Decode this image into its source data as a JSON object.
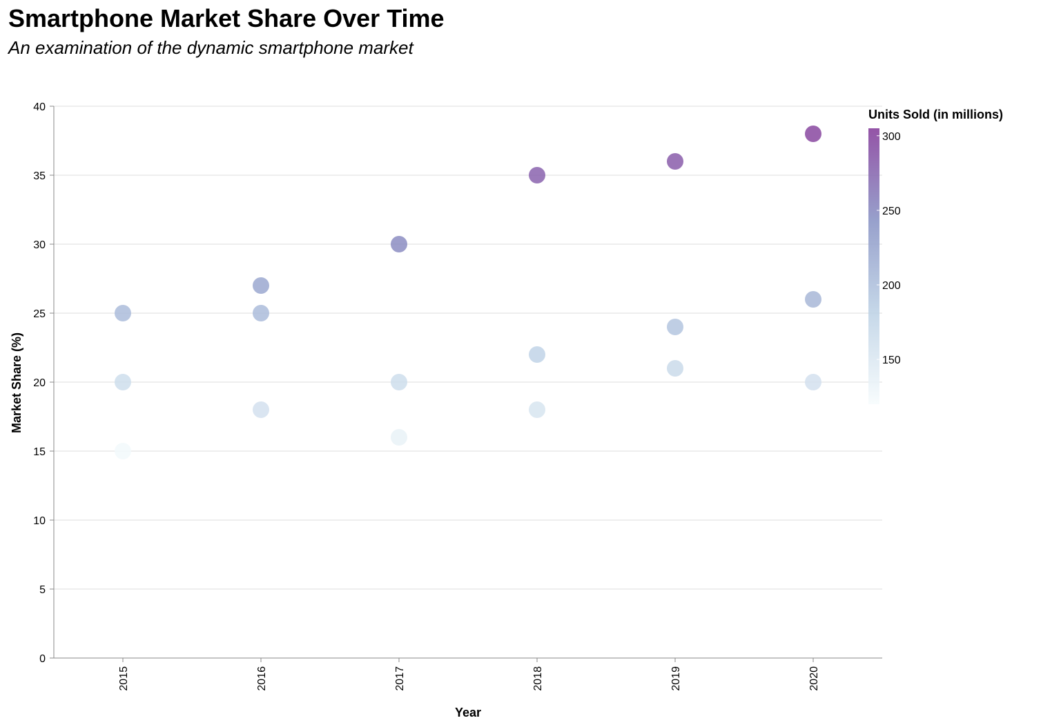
{
  "chart_data": {
    "type": "scatter",
    "title": "Smartphone Market Share Over Time",
    "subtitle": "An examination of the dynamic smartphone market",
    "xlabel": "Year",
    "ylabel": "Market Share (%)",
    "categories": [
      "2015",
      "2016",
      "2017",
      "2018",
      "2019",
      "2020"
    ],
    "ylim": [
      0,
      40
    ],
    "yticks": [
      0,
      5,
      10,
      15,
      20,
      25,
      30,
      35,
      40
    ],
    "grid": true,
    "color_legend": {
      "title": "Units Sold (in millions)",
      "placement": "right",
      "domain": [
        120,
        305
      ],
      "ticks": [
        150,
        200,
        250,
        300
      ],
      "colors": [
        "#f7fcfd",
        "#bfd3e6",
        "#8c96c6",
        "#88419d"
      ]
    },
    "points": [
      {
        "x": "2015",
        "y": 25,
        "units": 205
      },
      {
        "x": "2015",
        "y": 20,
        "units": 165
      },
      {
        "x": "2015",
        "y": 15,
        "units": 125
      },
      {
        "x": "2016",
        "y": 27,
        "units": 225
      },
      {
        "x": "2016",
        "y": 25,
        "units": 205
      },
      {
        "x": "2016",
        "y": 18,
        "units": 160
      },
      {
        "x": "2017",
        "y": 30,
        "units": 250
      },
      {
        "x": "2017",
        "y": 20,
        "units": 165
      },
      {
        "x": "2017",
        "y": 16,
        "units": 135
      },
      {
        "x": "2018",
        "y": 35,
        "units": 280
      },
      {
        "x": "2018",
        "y": 22,
        "units": 180
      },
      {
        "x": "2018",
        "y": 18,
        "units": 155
      },
      {
        "x": "2019",
        "y": 36,
        "units": 285
      },
      {
        "x": "2019",
        "y": 24,
        "units": 195
      },
      {
        "x": "2019",
        "y": 21,
        "units": 170
      },
      {
        "x": "2020",
        "y": 38,
        "units": 300
      },
      {
        "x": "2020",
        "y": 26,
        "units": 210
      },
      {
        "x": "2020",
        "y": 20,
        "units": 160
      }
    ]
  }
}
